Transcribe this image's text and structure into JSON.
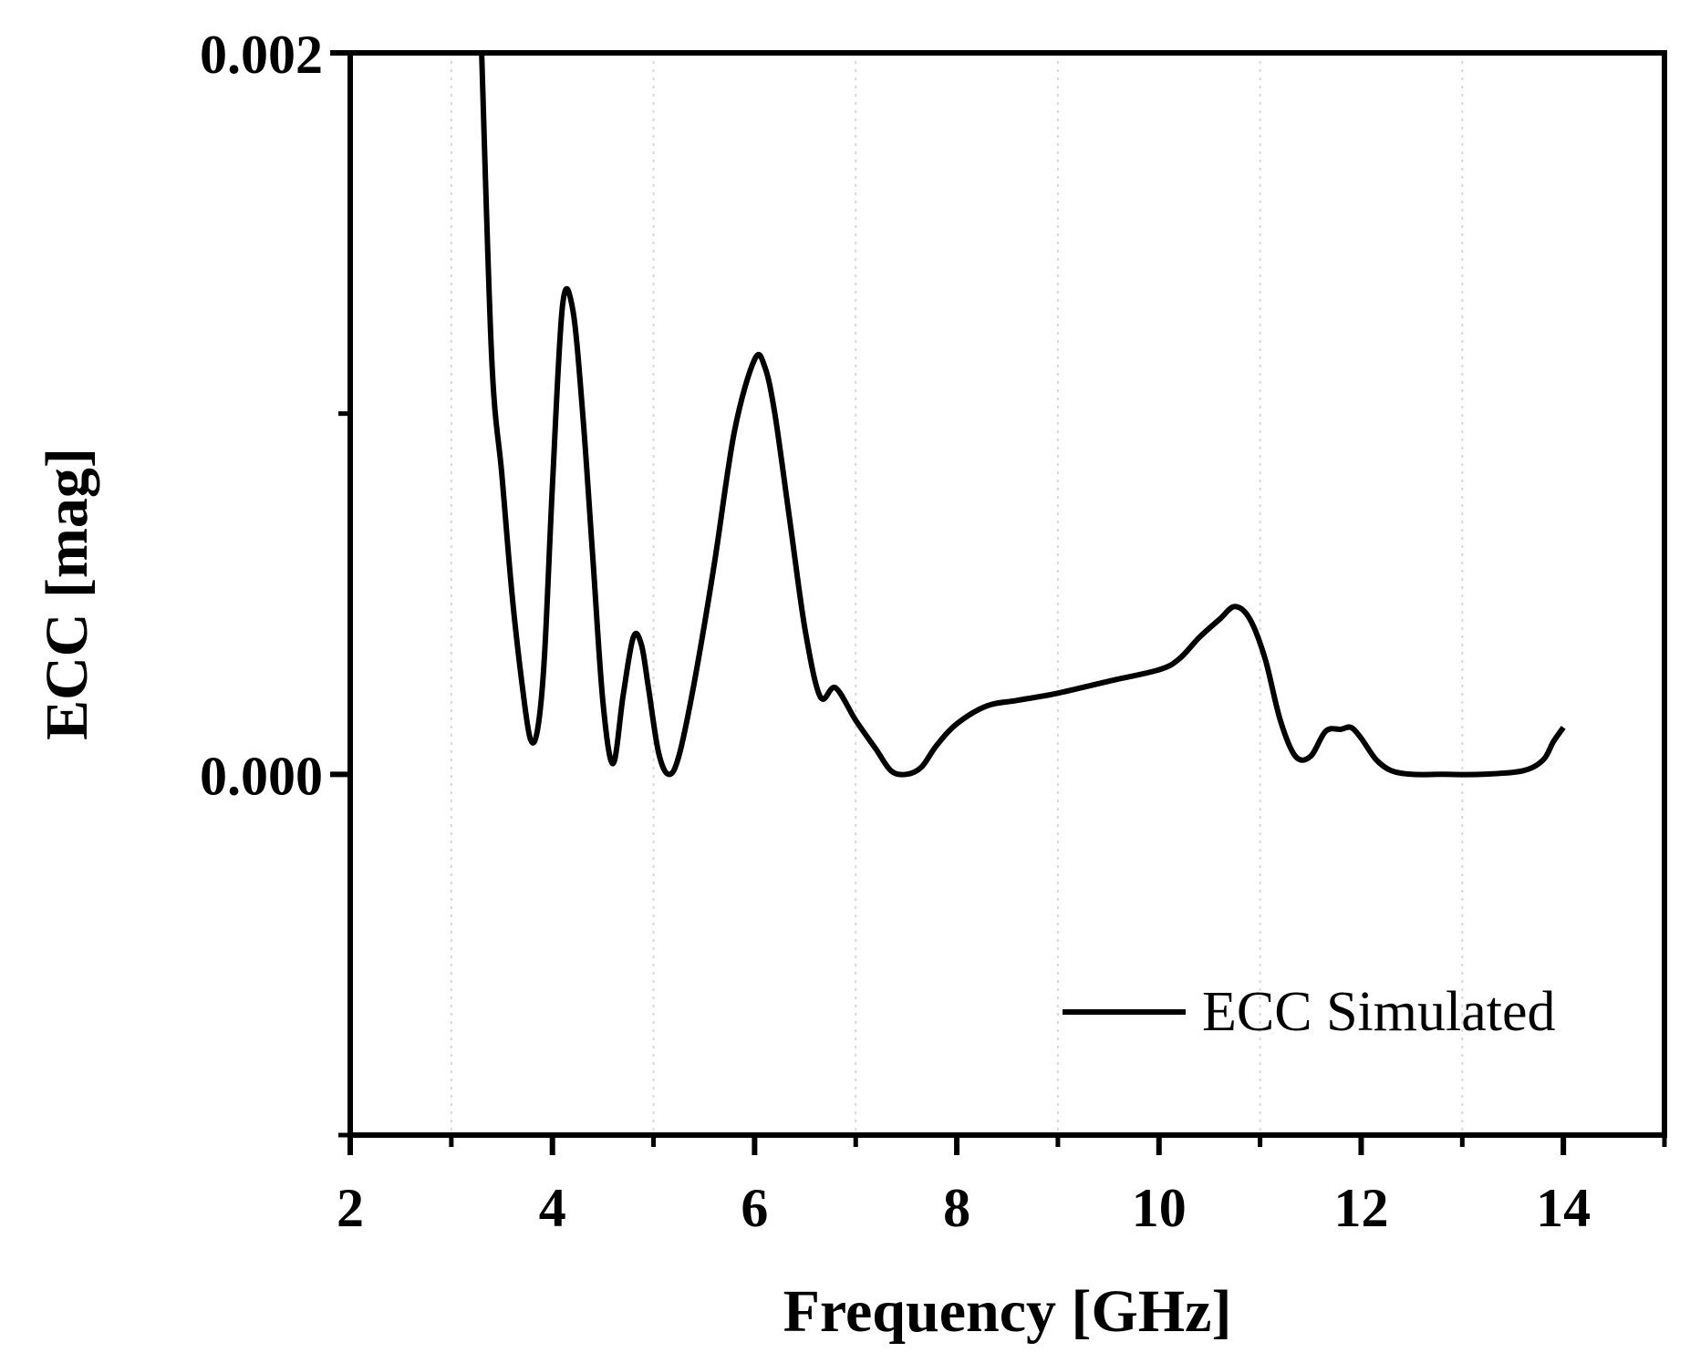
{
  "chart_data": {
    "type": "line",
    "title": "",
    "xlabel": "Frequency [GHz]",
    "ylabel": "ECC [mag]",
    "xlim": [
      2,
      15
    ],
    "ylim": [
      -0.001,
      0.002
    ],
    "x_ticks": [
      2,
      4,
      6,
      8,
      10,
      12,
      14
    ],
    "x_tick_labels": [
      "2",
      "4",
      "6",
      "8",
      "10",
      "12",
      "14"
    ],
    "x_minor_ticks": [
      3,
      5,
      7,
      9,
      11,
      13,
      15
    ],
    "y_ticks": [
      0.0,
      0.002
    ],
    "y_tick_labels": [
      "0.000",
      "0.002"
    ],
    "y_minor_ticks": [
      -0.001,
      0.001
    ],
    "grid": "vertical dotted at minor x ticks",
    "legend_position": "bottom-right",
    "series": [
      {
        "name": "ECC Simulated",
        "color": "#000000",
        "x": [
          3.3,
          3.4,
          3.5,
          3.6,
          3.7,
          3.78,
          3.85,
          3.92,
          4.0,
          4.1,
          4.2,
          4.3,
          4.4,
          4.5,
          4.6,
          4.7,
          4.8,
          4.88,
          4.95,
          5.05,
          5.15,
          5.25,
          5.4,
          5.6,
          5.8,
          6.0,
          6.1,
          6.2,
          6.35,
          6.5,
          6.65,
          6.8,
          7.0,
          7.2,
          7.35,
          7.5,
          7.65,
          7.8,
          8.0,
          8.3,
          8.6,
          9.0,
          9.5,
          10.0,
          10.2,
          10.4,
          10.6,
          10.75,
          10.9,
          11.05,
          11.2,
          11.35,
          11.5,
          11.65,
          11.8,
          11.9,
          12.0,
          12.15,
          12.3,
          12.5,
          12.8,
          13.2,
          13.6,
          13.8,
          13.9,
          14.0
        ],
        "y": [
          0.002,
          0.00115,
          0.00083,
          0.0005,
          0.00025,
          0.0001,
          0.00012,
          0.00032,
          0.0008,
          0.0013,
          0.00129,
          0.001,
          0.0006,
          0.0002,
          3e-05,
          0.00022,
          0.00038,
          0.00036,
          0.00024,
          6e-05,
          0.0,
          5e-05,
          0.00025,
          0.00058,
          0.00095,
          0.00115,
          0.00113,
          0.001,
          0.0007,
          0.0004,
          0.000215,
          0.00024,
          0.00015,
          7e-05,
          1e-05,
          0.0,
          2e-05,
          8e-05,
          0.00014,
          0.00019,
          0.000205,
          0.000225,
          0.000258,
          0.00029,
          0.00032,
          0.00038,
          0.00043,
          0.000465,
          0.00043,
          0.00032,
          0.00015,
          5e-05,
          5e-05,
          0.00012,
          0.000125,
          0.00013,
          0.0001,
          4e-05,
          1e-05,
          0.0,
          0.0,
          0.0,
          1e-05,
          4e-05,
          9e-05,
          0.00013
        ]
      }
    ]
  }
}
